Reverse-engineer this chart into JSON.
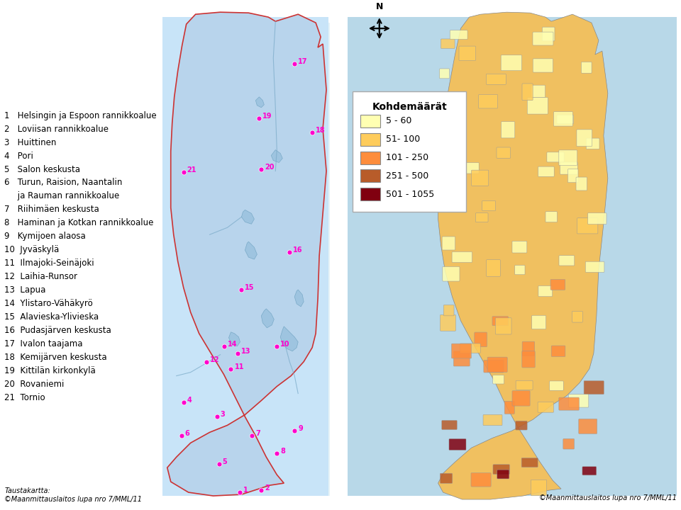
{
  "legend_title": "Kohdemäärät",
  "legend_items": [
    {
      "label": "5 - 60",
      "color": "#FFFFB2"
    },
    {
      "label": "51- 100",
      "color": "#FECC5C"
    },
    {
      "label": "101 - 250",
      "color": "#FD8D3C"
    },
    {
      "label": "251 - 500",
      "color": "#B85C2A"
    },
    {
      "label": "501 - 1055",
      "color": "#800010"
    }
  ],
  "left_legend_items": [
    "1   Helsingin ja Espoon rannikkoalue",
    "2   Loviisan rannikkoalue",
    "3   Huittinen",
    "4   Pori",
    "5   Salon keskusta",
    "6   Turun, Raision, Naantalin",
    "     ja Rauman rannikkoalue",
    "7   Riihimäen keskusta",
    "8   Haminan ja Kotkan rannikkoalue",
    "9   Kymijoen alaosa",
    "10  Jyväskylä",
    "11  Ilmajoki-Seinäjoki",
    "12  Laihia-Runsor",
    "13  Lapua",
    "14  Ylistaro-Vähäkyrö",
    "15  Alavieska-Ylivieska",
    "16  Pudasjärven keskusta",
    "17  Ivalon taajama",
    "18  Kemijärven keskusta",
    "19  Kittilän kirkonkylä",
    "20  Rovaniemi",
    "21  Tornio"
  ],
  "footer_left": "Taustakartta:\n©Maanmittauslaitos lupa nro 7/MML/11",
  "footer_right": "©Maanmittauslaitos lupa nro 7/MML/11",
  "bg_color": "#FFFFFF",
  "map_left_bg": "#ADD8E6",
  "map_left_border": "#CC0000",
  "map_right_sea": "#B8D8E8",
  "map_number_color": "#FF00CC",
  "compass_text": "N"
}
